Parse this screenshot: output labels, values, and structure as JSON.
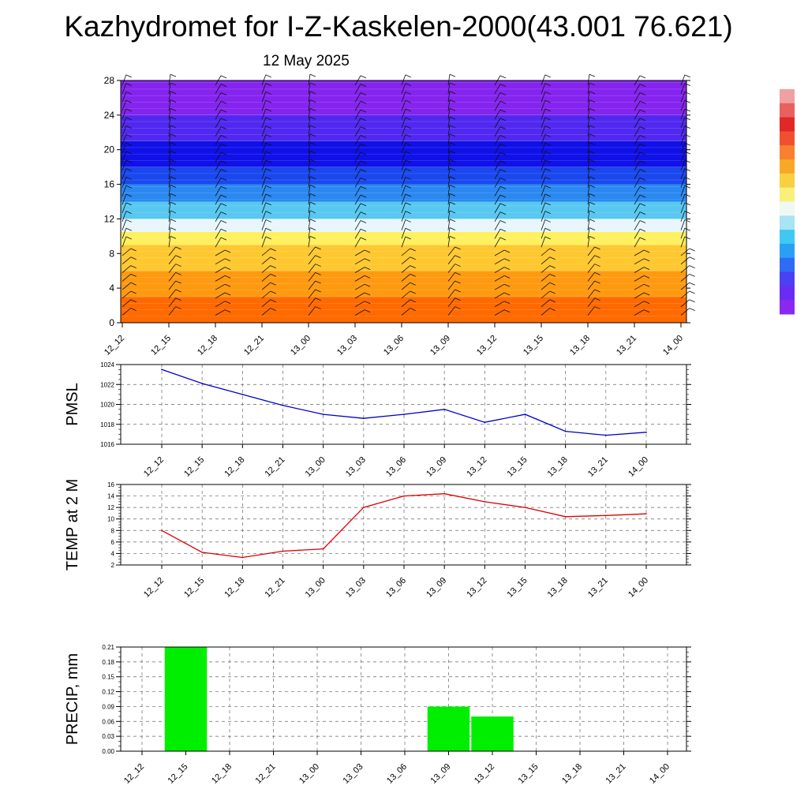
{
  "title": "Kazhydromet for I-Z-Kaskelen-2000(43.001 76.621)",
  "subtitle": "12 May 2025",
  "chart_data": [
    {
      "type": "heatmap",
      "description_role": "vertical cross-section with wind barbs",
      "x_categories": [
        "12_12",
        "12_15",
        "12_18",
        "12_21",
        "13_00",
        "13_03",
        "13_06",
        "13_09",
        "13_12",
        "13_15",
        "13_18",
        "13_21",
        "14_00"
      ],
      "y_ticks": [
        0,
        4,
        8,
        12,
        16,
        20,
        24,
        28
      ],
      "ylim": [
        0,
        28
      ],
      "bands": [
        {
          "from": 0,
          "to": 3,
          "color": "#ff6a00"
        },
        {
          "from": 3,
          "to": 6,
          "color": "#ff9a10"
        },
        {
          "from": 6,
          "to": 9,
          "color": "#ffc830"
        },
        {
          "from": 9,
          "to": 10.5,
          "color": "#fff060"
        },
        {
          "from": 10.5,
          "to": 12,
          "color": "#e8f6fb"
        },
        {
          "from": 12,
          "to": 14,
          "color": "#58c8f0"
        },
        {
          "from": 14,
          "to": 16,
          "color": "#2a88f0"
        },
        {
          "from": 16,
          "to": 18,
          "color": "#1a48ee"
        },
        {
          "from": 18,
          "to": 21,
          "color": "#1010e8"
        },
        {
          "from": 21,
          "to": 24,
          "color": "#5028f0"
        },
        {
          "from": 24,
          "to": 28,
          "color": "#8424ee"
        }
      ],
      "colorbar": [
        "#8a28f0",
        "#6a2cf4",
        "#4a40f4",
        "#2e6cf4",
        "#2aa0f4",
        "#40c8f4",
        "#a8e4f4",
        "#f0f8f4",
        "#f8f07a",
        "#f8d040",
        "#f8a828",
        "#f88030",
        "#f05030",
        "#e02828",
        "#e86060",
        "#f0a0a0"
      ]
    },
    {
      "type": "line",
      "ylabel": "PMSL",
      "x": [
        "12_12",
        "12_15",
        "12_18",
        "12_21",
        "13_00",
        "13_03",
        "13_06",
        "13_09",
        "13_12",
        "13_15",
        "13_18",
        "13_21",
        "14_00"
      ],
      "values": [
        1023.5,
        1022.1,
        1021.0,
        1019.9,
        1019.0,
        1018.6,
        1019.0,
        1019.5,
        1018.2,
        1019.0,
        1017.3,
        1016.9,
        1017.2
      ],
      "ylim": [
        1016,
        1024
      ],
      "y_ticks": [
        1016,
        1018,
        1020,
        1022,
        1024
      ],
      "color": "#0000cc",
      "grid": true
    },
    {
      "type": "line",
      "ylabel": "TEMP at 2 M",
      "x": [
        "12_12",
        "12_15",
        "12_18",
        "12_21",
        "13_00",
        "13_03",
        "13_06",
        "13_09",
        "13_12",
        "13_15",
        "13_18",
        "13_21",
        "14_00"
      ],
      "values": [
        8.0,
        4.2,
        3.3,
        4.4,
        4.8,
        12.0,
        14.0,
        14.4,
        13.0,
        12.0,
        10.4,
        10.6,
        10.9
      ],
      "ylim": [
        2,
        16
      ],
      "y_ticks": [
        2,
        4,
        6,
        8,
        10,
        12,
        14,
        16
      ],
      "color": "#dd0000",
      "grid": true
    },
    {
      "type": "bar",
      "ylabel": "PRECIP, mm",
      "categories": [
        "12_12",
        "12_15",
        "12_18",
        "12_21",
        "13_00",
        "13_03",
        "13_06",
        "13_09",
        "13_12",
        "13_15",
        "13_18",
        "13_21",
        "14_00"
      ],
      "values": [
        0,
        0.21,
        0,
        0,
        0,
        0,
        0,
        0.09,
        0.07,
        0,
        0,
        0,
        0
      ],
      "ylim": [
        0,
        0.21
      ],
      "y_ticks": [
        "0.00",
        "0.03",
        "0.06",
        "0.09",
        "0.12",
        "0.15",
        "0.18",
        "0.21"
      ],
      "color": "#00ee00",
      "grid": true
    }
  ]
}
